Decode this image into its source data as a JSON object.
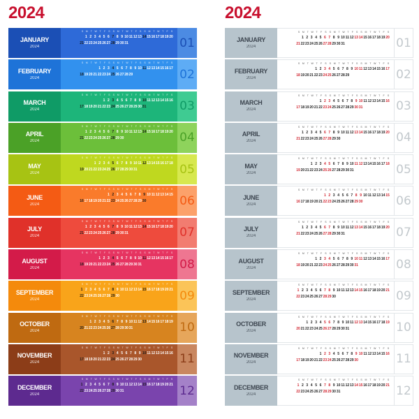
{
  "year": "2024",
  "weekday_headers": [
    "S",
    "M",
    "T",
    "W",
    "T",
    "F",
    "S",
    "S",
    "M",
    "T",
    "W",
    "T",
    "F",
    "S",
    "S",
    "M",
    "T",
    "W",
    "T",
    "F",
    "S"
  ],
  "months": [
    {
      "name": "JANUARY",
      "year": "2024",
      "number": "01",
      "start": 1,
      "days": 31,
      "color": "#1b4fb5",
      "color_light": "#2e6ad8",
      "tab": "#4c8be3"
    },
    {
      "name": "FEBRUARY",
      "year": "2024",
      "number": "02",
      "start": 4,
      "days": 29,
      "color": "#1e73d8",
      "color_light": "#3291ee",
      "tab": "#5eacf5"
    },
    {
      "name": "MARCH",
      "year": "2024",
      "number": "03",
      "start": 5,
      "days": 31,
      "color": "#0f9b66",
      "color_light": "#1db57a",
      "tab": "#3fcb92"
    },
    {
      "name": "APRIL",
      "year": "2024",
      "number": "04",
      "start": 1,
      "days": 30,
      "color": "#4ba127",
      "color_light": "#6cbf3a",
      "tab": "#8ed35c"
    },
    {
      "name": "MAY",
      "year": "2024",
      "number": "05",
      "start": 3,
      "days": 31,
      "color": "#a7c313",
      "color_light": "#bfd81f",
      "tab": "#d7e84f"
    },
    {
      "name": "JUNE",
      "year": "2024",
      "number": "06",
      "start": 6,
      "days": 30,
      "color": "#f45b14",
      "color_light": "#fa7b2b",
      "tab": "#fca16a"
    },
    {
      "name": "JULY",
      "year": "2024",
      "number": "07",
      "start": 1,
      "days": 31,
      "color": "#e0312a",
      "color_light": "#ee4b3d",
      "tab": "#f27c70"
    },
    {
      "name": "AUGUST",
      "year": "2024",
      "number": "08",
      "start": 4,
      "days": 31,
      "color": "#d31b49",
      "color_light": "#e63461",
      "tab": "#ee7691"
    },
    {
      "name": "SEPTEMBER",
      "year": "2024",
      "number": "09",
      "start": 0,
      "days": 30,
      "color": "#f48a0c",
      "color_light": "#f9a41a",
      "tab": "#fbc458"
    },
    {
      "name": "OCTOBER",
      "year": "2024",
      "number": "10",
      "start": 2,
      "days": 31,
      "color": "#bf6a11",
      "color_light": "#d7841f",
      "tab": "#e6a65b"
    },
    {
      "name": "NOVEMBER",
      "year": "2024",
      "number": "11",
      "start": 5,
      "days": 30,
      "color": "#8c3d18",
      "color_light": "#a9562b",
      "tab": "#c98760"
    },
    {
      "name": "DECEMBER",
      "year": "2024",
      "number": "12",
      "start": 0,
      "days": 31,
      "color": "#5d2a8f",
      "color_light": "#7a44ad",
      "tab": "#a481c8"
    }
  ]
}
